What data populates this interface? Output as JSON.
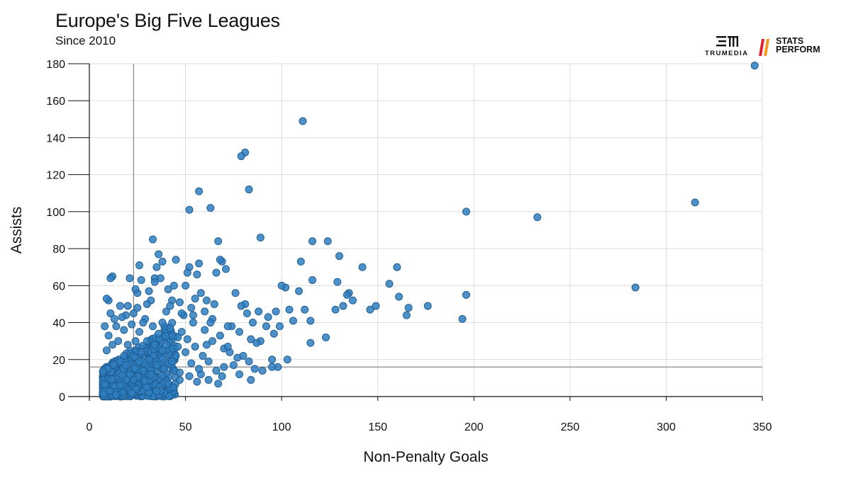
{
  "header": {
    "title": "Europe's Big Five Leagues",
    "subtitle": "Since 2010"
  },
  "logos": {
    "trumedia": "TRUMEDIA",
    "stats_perform_line1": "STATS",
    "stats_perform_line2": "PERFORM"
  },
  "colors": {
    "point_fill": "#2f7ec0",
    "point_stroke": "#1f5f94",
    "grid": "#dddddd",
    "reference_line": "#888888"
  },
  "chart_data": {
    "type": "scatter",
    "title": "Europe's Big Five Leagues",
    "subtitle": "Since 2010",
    "xlabel": "Non-Penalty Goals",
    "ylabel": "Assists",
    "xlim": [
      0,
      350
    ],
    "ylim": [
      0,
      180
    ],
    "x_ticks": [
      "0",
      "50",
      "100",
      "150",
      "200",
      "250",
      "300",
      "350"
    ],
    "y_ticks": [
      "0",
      "20",
      "40",
      "60",
      "80",
      "100",
      "120",
      "140",
      "160",
      "180"
    ],
    "grid": true,
    "reference_lines": {
      "x_average": 23,
      "y_average": 16
    },
    "points": [
      [
        346,
        179
      ],
      [
        111,
        149
      ],
      [
        81,
        132
      ],
      [
        79,
        130
      ],
      [
        57,
        111
      ],
      [
        83,
        112
      ],
      [
        52,
        101
      ],
      [
        63,
        102
      ],
      [
        196,
        100
      ],
      [
        233,
        97
      ],
      [
        315,
        105
      ],
      [
        284,
        59
      ],
      [
        196,
        55
      ],
      [
        194,
        42
      ],
      [
        176,
        49
      ],
      [
        166,
        48
      ],
      [
        165,
        44
      ],
      [
        161,
        54
      ],
      [
        160,
        70
      ],
      [
        156,
        61
      ],
      [
        149,
        49
      ],
      [
        146,
        47
      ],
      [
        142,
        70
      ],
      [
        137,
        52
      ],
      [
        135,
        56
      ],
      [
        134,
        55
      ],
      [
        132,
        49
      ],
      [
        130,
        76
      ],
      [
        129,
        62
      ],
      [
        128,
        47
      ],
      [
        124,
        84
      ],
      [
        123,
        32
      ],
      [
        116,
        84
      ],
      [
        116,
        63
      ],
      [
        115,
        41
      ],
      [
        115,
        29
      ],
      [
        112,
        47
      ],
      [
        110,
        73
      ],
      [
        109,
        57
      ],
      [
        106,
        41
      ],
      [
        104,
        47
      ],
      [
        103,
        20
      ],
      [
        102,
        59
      ],
      [
        100,
        60
      ],
      [
        99,
        38
      ],
      [
        98,
        16
      ],
      [
        97,
        46
      ],
      [
        96,
        34
      ],
      [
        95,
        20
      ],
      [
        93,
        43
      ],
      [
        92,
        38
      ],
      [
        89,
        86
      ],
      [
        88,
        46
      ],
      [
        89,
        30
      ],
      [
        87,
        29
      ],
      [
        85,
        40
      ],
      [
        84,
        31
      ],
      [
        82,
        45
      ],
      [
        83,
        19
      ],
      [
        81,
        50
      ],
      [
        79,
        49
      ],
      [
        78,
        35
      ],
      [
        77,
        21
      ],
      [
        76,
        56
      ],
      [
        74,
        38
      ],
      [
        72,
        38
      ],
      [
        71,
        69
      ],
      [
        70,
        26
      ],
      [
        69,
        73
      ],
      [
        68,
        74
      ],
      [
        67,
        84
      ],
      [
        66,
        67
      ],
      [
        65,
        50
      ],
      [
        64,
        42
      ],
      [
        63,
        40
      ],
      [
        61,
        52
      ],
      [
        60,
        46
      ],
      [
        58,
        56
      ],
      [
        57,
        72
      ],
      [
        56,
        66
      ],
      [
        55,
        53
      ],
      [
        54,
        44
      ],
      [
        52,
        70
      ],
      [
        51,
        67
      ],
      [
        50,
        60
      ],
      [
        49,
        44
      ],
      [
        47,
        51
      ],
      [
        46,
        27
      ],
      [
        45,
        74
      ],
      [
        44,
        60
      ],
      [
        43,
        52
      ],
      [
        41,
        58
      ],
      [
        40,
        46
      ],
      [
        39,
        38
      ],
      [
        38,
        73
      ],
      [
        37,
        64
      ],
      [
        36,
        77
      ],
      [
        35,
        70
      ],
      [
        34,
        64
      ],
      [
        34,
        62
      ],
      [
        33,
        85
      ],
      [
        32,
        52
      ],
      [
        31,
        57
      ],
      [
        30,
        50
      ],
      [
        29,
        42
      ],
      [
        28,
        40
      ],
      [
        27,
        63
      ],
      [
        26,
        71
      ],
      [
        25,
        48
      ],
      [
        25,
        56
      ],
      [
        24,
        58
      ],
      [
        23,
        45
      ],
      [
        22,
        39
      ],
      [
        21,
        64
      ],
      [
        20,
        49
      ],
      [
        19,
        44
      ],
      [
        18,
        36
      ],
      [
        17,
        43
      ],
      [
        12,
        65
      ],
      [
        11,
        64
      ],
      [
        10,
        52
      ],
      [
        9,
        53
      ],
      [
        11,
        45
      ],
      [
        13,
        42
      ],
      [
        16,
        49
      ],
      [
        14,
        38
      ],
      [
        8,
        38
      ],
      [
        42,
        49
      ],
      [
        38,
        25
      ],
      [
        48,
        35
      ],
      [
        53,
        18
      ],
      [
        58,
        12
      ],
      [
        61,
        28
      ],
      [
        66,
        14
      ],
      [
        70,
        16
      ],
      [
        73,
        24
      ],
      [
        62,
        9
      ],
      [
        56,
        8
      ],
      [
        44,
        5
      ],
      [
        37,
        3
      ],
      [
        29,
        8
      ],
      [
        47,
        13
      ],
      [
        51,
        31
      ],
      [
        59,
        22
      ],
      [
        64,
        30
      ],
      [
        69,
        11
      ],
      [
        75,
        17
      ],
      [
        80,
        22
      ],
      [
        86,
        15
      ],
      [
        68,
        33
      ],
      [
        72,
        27
      ],
      [
        60,
        36
      ],
      [
        54,
        40
      ],
      [
        46,
        32
      ],
      [
        40,
        28
      ],
      [
        36,
        34
      ],
      [
        33,
        38
      ],
      [
        31,
        20
      ],
      [
        27,
        24
      ],
      [
        24,
        30
      ],
      [
        20,
        28
      ],
      [
        18,
        22
      ],
      [
        15,
        30
      ],
      [
        12,
        28
      ],
      [
        10,
        33
      ],
      [
        9,
        25
      ],
      [
        26,
        35
      ],
      [
        30,
        30
      ],
      [
        34,
        28
      ],
      [
        38,
        40
      ],
      [
        42,
        37
      ],
      [
        45,
        22
      ],
      [
        50,
        24
      ],
      [
        55,
        27
      ],
      [
        19,
        17
      ],
      [
        21,
        12
      ],
      [
        23,
        9
      ],
      [
        28,
        14
      ],
      [
        32,
        12
      ],
      [
        35,
        17
      ],
      [
        39,
        15
      ],
      [
        43,
        19
      ],
      [
        47,
        9
      ],
      [
        52,
        11
      ],
      [
        57,
        15
      ],
      [
        62,
        19
      ],
      [
        67,
        7
      ],
      [
        78,
        12
      ],
      [
        84,
        9
      ],
      [
        90,
        14
      ],
      [
        95,
        16
      ],
      [
        24,
        4
      ],
      [
        30,
        5
      ],
      [
        41,
        7
      ],
      [
        16,
        6
      ],
      [
        22,
        2
      ],
      [
        35,
        3
      ],
      [
        26,
        19
      ],
      [
        48,
        45
      ],
      [
        53,
        48
      ]
    ]
  }
}
